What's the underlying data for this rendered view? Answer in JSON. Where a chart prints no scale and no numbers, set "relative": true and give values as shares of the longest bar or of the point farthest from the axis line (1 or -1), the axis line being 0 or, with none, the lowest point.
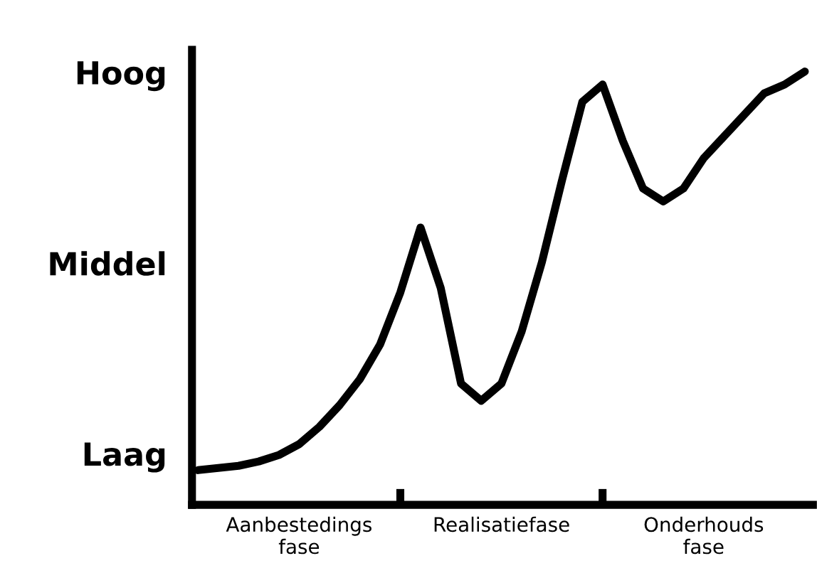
{
  "chart_data": {
    "type": "line",
    "relative": true,
    "categories": [
      null,
      null,
      null,
      null,
      null,
      "Aanbestedings\nfase",
      null,
      null,
      null,
      null,
      null,
      null,
      null,
      null,
      null,
      "Realisatiefase",
      null,
      null,
      null,
      null,
      null,
      null,
      null,
      null,
      null,
      "Onderhouds\nfase",
      null,
      null,
      null,
      null,
      null
    ],
    "annotations": [
      "Hoog",
      "Middel",
      "Laag"
    ],
    "grid": false,
    "legend": false,
    "marker": "none",
    "line_style": "solid",
    "series": [
      {
        "color": "#000000",
        "values": [
          0.08,
          0.085,
          0.09,
          0.1,
          0.115,
          0.14,
          0.18,
          0.23,
          0.29,
          0.37,
          0.49,
          0.64,
          0.5,
          0.28,
          0.24,
          0.28,
          0.4,
          0.56,
          0.75,
          0.93,
          0.97,
          0.84,
          0.73,
          0.7,
          0.73,
          0.8,
          0.85,
          0.9,
          0.95,
          0.97,
          1.0
        ]
      }
    ]
  }
}
